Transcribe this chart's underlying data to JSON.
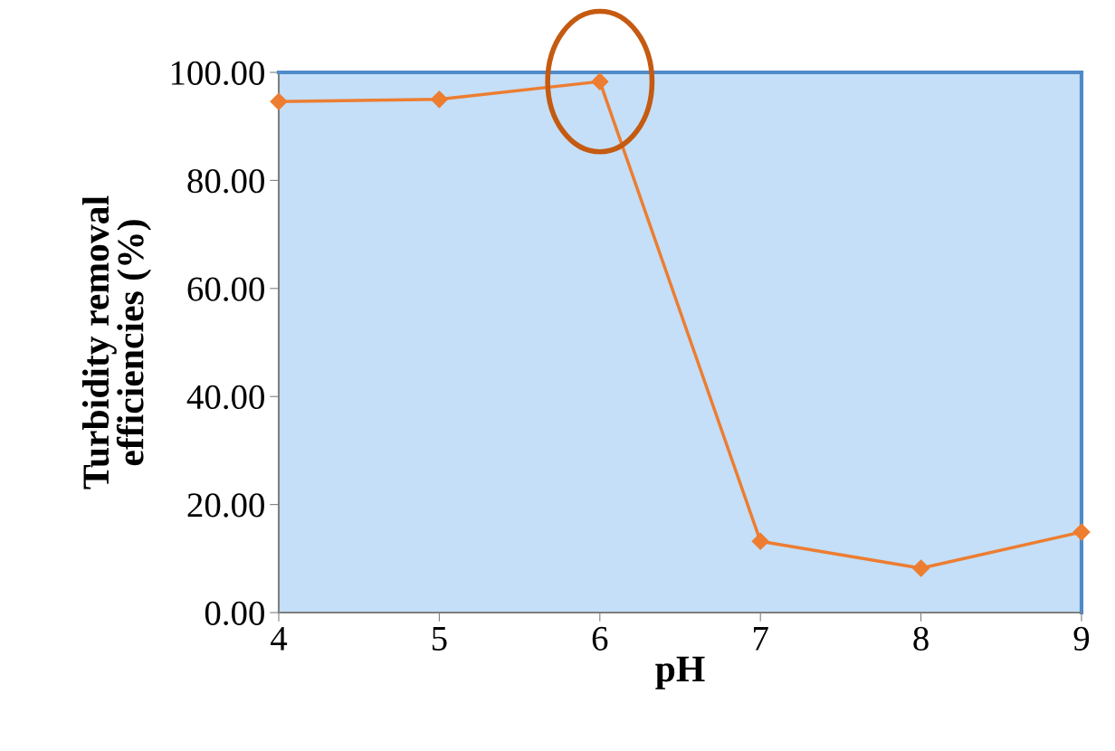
{
  "chart_data": {
    "type": "line",
    "xlabel": "pH",
    "ylabel": "Turbidity removal\nefficiencies (%)",
    "x": [
      4,
      5,
      6,
      7,
      8,
      9
    ],
    "series": [
      {
        "color": "#ed7d31",
        "values": [
          94.6,
          95.0,
          98.3,
          13.2,
          8.2,
          14.9
        ]
      }
    ],
    "xlim": [
      4,
      9
    ],
    "xticks": [
      4,
      5,
      6,
      7,
      8,
      9
    ],
    "ylim": [
      0,
      100
    ],
    "yticks": [
      {
        "value": 0,
        "label": "0.00"
      },
      {
        "value": 20,
        "label": "20.00"
      },
      {
        "value": 40,
        "label": "40.00"
      },
      {
        "value": 60,
        "label": "60.00"
      },
      {
        "value": 80,
        "label": "80.00"
      },
      {
        "value": 100,
        "label": "100.00"
      }
    ],
    "marker": "diamond",
    "line_style": "solid",
    "grid": false,
    "legend": false
  }
}
